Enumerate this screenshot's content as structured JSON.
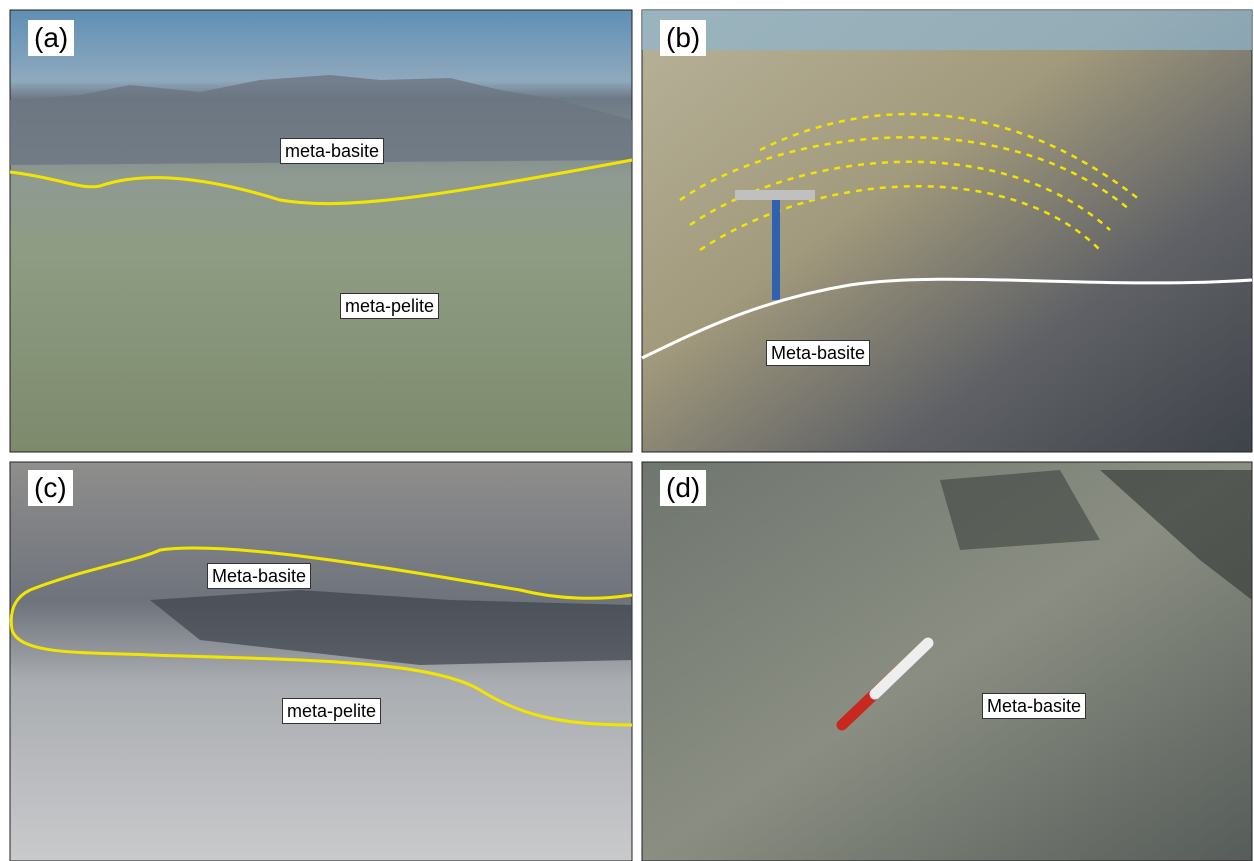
{
  "panels": [
    {
      "letter": "(a)",
      "labels": [
        "meta-basite",
        "meta-pelite"
      ]
    },
    {
      "letter": "(b)",
      "labels": [
        "Meta-basite"
      ]
    },
    {
      "letter": "(c)",
      "labels": [
        "Meta-basite",
        "meta-pelite"
      ]
    },
    {
      "letter": "(d)",
      "labels": [
        "Meta-basite"
      ]
    }
  ]
}
